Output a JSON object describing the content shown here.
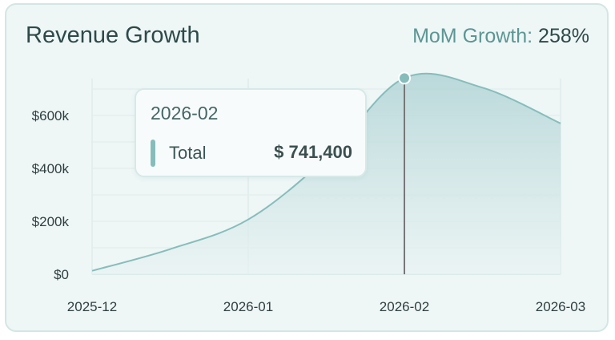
{
  "card": {
    "title": "Revenue Growth",
    "growth_label": "MoM Growth:",
    "growth_value": "258%"
  },
  "tooltip": {
    "date": "2026-02",
    "series_label": "Total",
    "value_text": "$ 741,400"
  },
  "colors": {
    "line": "#86bdbb",
    "area_top": "#a9cfd1",
    "background": "#eef6f6",
    "crosshair": "#777777"
  },
  "chart_data": {
    "type": "area",
    "title": "Revenue Growth",
    "x_ticks": [
      "2025-12",
      "2026-01",
      "2026-02",
      "2026-03"
    ],
    "y_ticks": [
      "$0",
      "$200k",
      "$400k",
      "$600k"
    ],
    "ylim": [
      0,
      741400
    ],
    "grid": true,
    "series": [
      {
        "name": "Total",
        "x": [
          "2025-12",
          "2025-12-15",
          "2026-01",
          "2026-01-15",
          "2026-02",
          "2026-02-15",
          "2026-03"
        ],
        "values": [
          13000,
          95000,
          207000,
          440000,
          741400,
          705000,
          570000
        ]
      }
    ],
    "highlight": {
      "x": "2026-02",
      "value": 741400
    }
  }
}
